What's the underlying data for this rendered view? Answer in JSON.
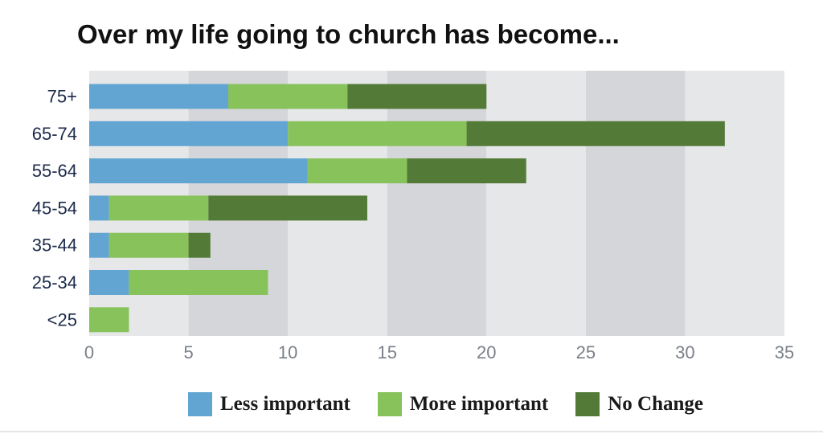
{
  "chart_data": {
    "type": "bar",
    "orientation": "horizontal",
    "stacked": true,
    "title": "Over my life going to church has become...",
    "xlabel": "",
    "ylabel": "",
    "categories": [
      "75+",
      "65-74",
      "55-64",
      "45-54",
      "35-44",
      "25-34",
      "<25"
    ],
    "series": [
      {
        "name": "Less important",
        "color": "#62a5d3",
        "values": [
          7,
          10,
          11,
          1,
          1,
          2,
          0
        ]
      },
      {
        "name": "More important",
        "color": "#87c25a",
        "values": [
          6,
          9,
          5,
          5,
          4,
          7,
          2
        ]
      },
      {
        "name": "No Change",
        "color": "#537b37",
        "values": [
          7,
          13,
          6,
          8,
          1.1,
          0,
          0
        ]
      }
    ],
    "xlim": [
      0,
      35
    ],
    "xticks": [
      "0",
      "5",
      "10",
      "15",
      "20",
      "25",
      "30",
      "35"
    ],
    "grid": "alternating vertical bands",
    "legend_position": "bottom"
  }
}
